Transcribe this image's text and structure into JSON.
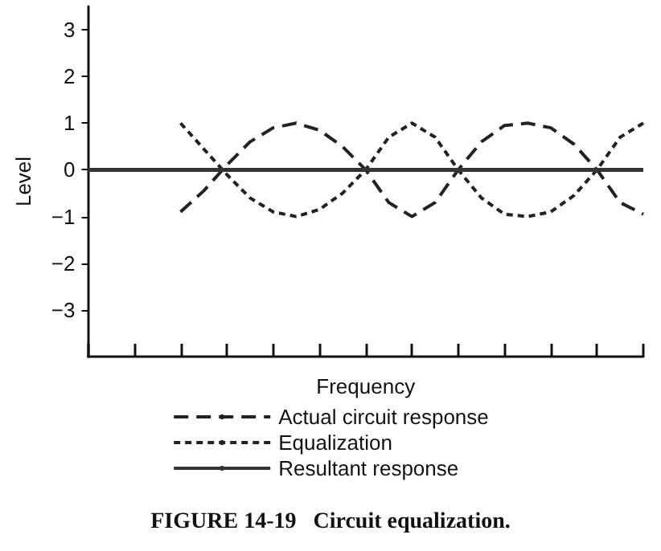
{
  "chart_data": {
    "type": "line",
    "title": "FIGURE 14-19   Circuit equalization.",
    "xlabel": "Frequency",
    "ylabel": "Level",
    "categories": [
      null,
      null,
      null,
      null,
      null,
      null,
      null,
      null,
      null,
      null,
      null,
      null,
      null,
      null,
      null,
      null,
      null,
      null,
      null,
      null,
      null,
      null,
      null,
      null,
      null
    ],
    "ylim": [
      -4,
      3.5
    ],
    "yticks": [
      -3,
      -2,
      -1,
      0,
      1,
      2,
      3
    ],
    "tick_labels": "y",
    "grid": false,
    "legend": "bottom",
    "marker": "none",
    "series": [
      {
        "name": "Actual circuit response",
        "color": "#222222",
        "line_style": "dashed",
        "values": [
          null,
          null,
          null,
          null,
          -0.9,
          -0.45,
          0.1,
          0.6,
          0.9,
          1,
          0.85,
          0.5,
          0,
          -0.7,
          -1,
          -0.7,
          0,
          0.6,
          0.95,
          1,
          0.9,
          0.55,
          0,
          -0.7,
          -0.95
        ]
      },
      {
        "name": "Equalization",
        "color": "#222222",
        "line_style": "dotted",
        "values": [
          null,
          null,
          null,
          null,
          1,
          0.45,
          -0.1,
          -0.6,
          -0.9,
          -1,
          -0.85,
          -0.5,
          0,
          0.7,
          1,
          0.7,
          0,
          -0.6,
          -0.95,
          -1,
          -0.9,
          -0.55,
          0,
          0.7,
          1
        ]
      },
      {
        "name": "Resultant response",
        "color": "#333333",
        "line_style": "solid",
        "values": [
          0,
          0,
          0,
          0,
          0,
          0,
          0,
          0,
          0,
          0,
          0,
          0,
          0,
          0,
          0,
          0,
          0,
          0,
          0,
          0,
          0,
          0,
          0,
          0,
          0
        ]
      }
    ]
  }
}
